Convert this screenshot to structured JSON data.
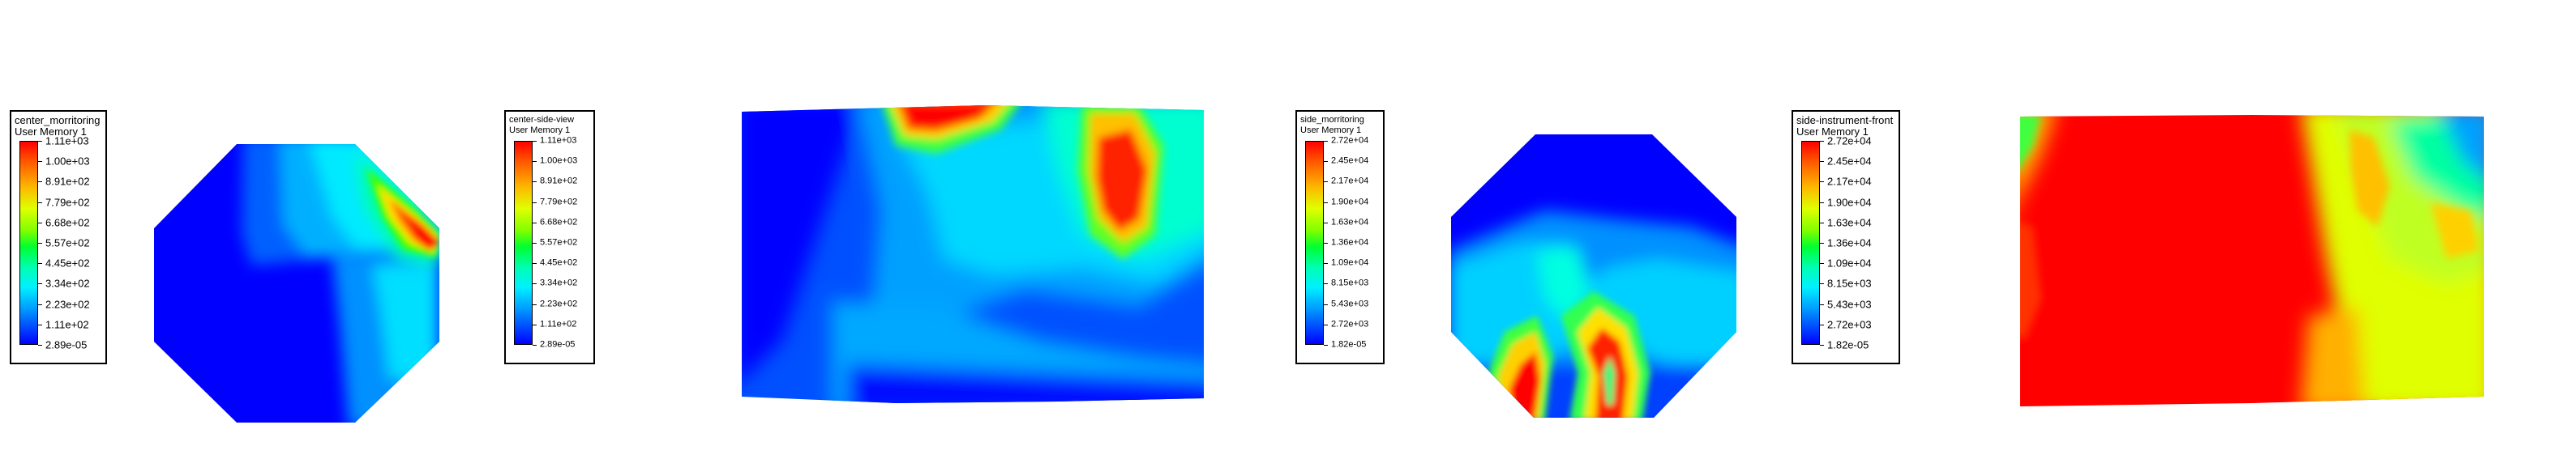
{
  "chart_data": [
    {
      "type": "heatmap",
      "title": "center_morritoring",
      "subtitle": "User Memory 1",
      "color_scale": [
        "#0000ff",
        "#00a0ff",
        "#00f0ff",
        "#00ffb0",
        "#00ff30",
        "#80ff00",
        "#e0ff00",
        "#ffb400",
        "#ff5a00",
        "#ff0000"
      ],
      "legend_ticks": [
        "1.11e+03",
        "1.00e+03",
        "8.91e+02",
        "7.79e+02",
        "6.68e+02",
        "5.57e+02",
        "4.45e+02",
        "3.34e+02",
        "2.23e+02",
        "1.11e+02",
        "2.89e-05"
      ],
      "range": [
        2.89e-05,
        1110
      ]
    },
    {
      "type": "heatmap",
      "title": "center-side-view",
      "subtitle": "User Memory 1",
      "color_scale": [
        "#0000ff",
        "#00a0ff",
        "#00f0ff",
        "#00ffb0",
        "#00ff30",
        "#80ff00",
        "#e0ff00",
        "#ffb400",
        "#ff5a00",
        "#ff0000"
      ],
      "legend_ticks": [
        "1.11e+03",
        "1.00e+03",
        "8.91e+02",
        "7.79e+02",
        "6.68e+02",
        "5.57e+02",
        "4.45e+02",
        "3.34e+02",
        "2.23e+02",
        "1.11e+02",
        "2.89e-05"
      ],
      "range": [
        2.89e-05,
        1110
      ]
    },
    {
      "type": "heatmap",
      "title": "side_morritoring",
      "subtitle": "User Memory 1",
      "color_scale": [
        "#0000ff",
        "#00a0ff",
        "#00f0ff",
        "#00ffb0",
        "#00ff30",
        "#80ff00",
        "#e0ff00",
        "#ffb400",
        "#ff5a00",
        "#ff0000"
      ],
      "legend_ticks": [
        "2.72e+04",
        "2.45e+04",
        "2.17e+04",
        "1.90e+04",
        "1.63e+04",
        "1.36e+04",
        "1.09e+04",
        "8.15e+03",
        "5.43e+03",
        "2.72e+03",
        "1.82e-05"
      ],
      "range": [
        1.82e-05,
        27200
      ]
    },
    {
      "type": "heatmap",
      "title": "side-instrument-front",
      "subtitle": "User Memory 1",
      "color_scale": [
        "#0000ff",
        "#00a0ff",
        "#00f0ff",
        "#00ffb0",
        "#00ff30",
        "#80ff00",
        "#e0ff00",
        "#ffb400",
        "#ff5a00",
        "#ff0000"
      ],
      "legend_ticks": [
        "2.72e+04",
        "2.45e+04",
        "2.17e+04",
        "1.90e+04",
        "1.63e+04",
        "1.36e+04",
        "1.09e+04",
        "8.15e+03",
        "5.43e+03",
        "2.72e+03",
        "1.82e-05"
      ],
      "range": [
        1.82e-05,
        27200
      ]
    }
  ]
}
